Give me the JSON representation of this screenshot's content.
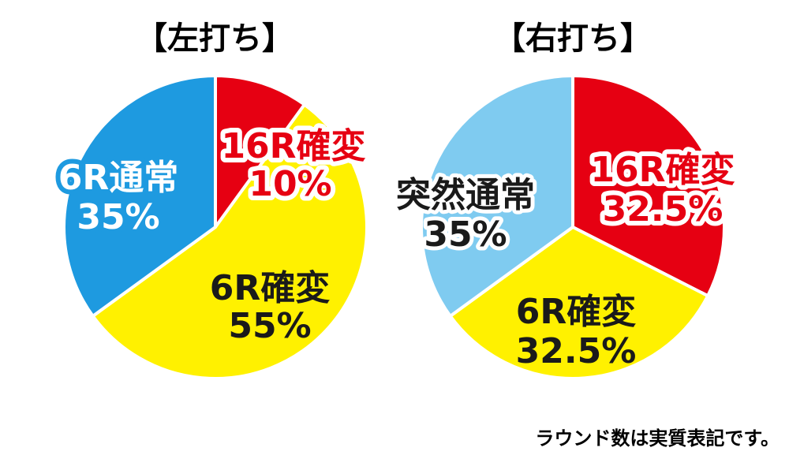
{
  "chart_data": [
    {
      "type": "pie",
      "title": "【左打ち】",
      "slices": [
        {
          "label": "16R確変",
          "value": 10,
          "value_text": "10%",
          "color": "#e60012"
        },
        {
          "label": "6R確変",
          "value": 55,
          "value_text": "55%",
          "color": "#fff100"
        },
        {
          "label": "6R通常",
          "value": 35,
          "value_text": "35%",
          "color": "#1e9ae0"
        }
      ]
    },
    {
      "type": "pie",
      "title": "【右打ち】",
      "slices": [
        {
          "label": "16R確変",
          "value": 32.5,
          "value_text": "32.5%",
          "color": "#e60012"
        },
        {
          "label": "6R確変",
          "value": 32.5,
          "value_text": "32.5%",
          "color": "#fff100"
        },
        {
          "label": "突然通常",
          "value": 35,
          "value_text": "35%",
          "color": "#7fcbf0"
        }
      ]
    }
  ],
  "footnote": "ラウンド数は実質表記です。"
}
